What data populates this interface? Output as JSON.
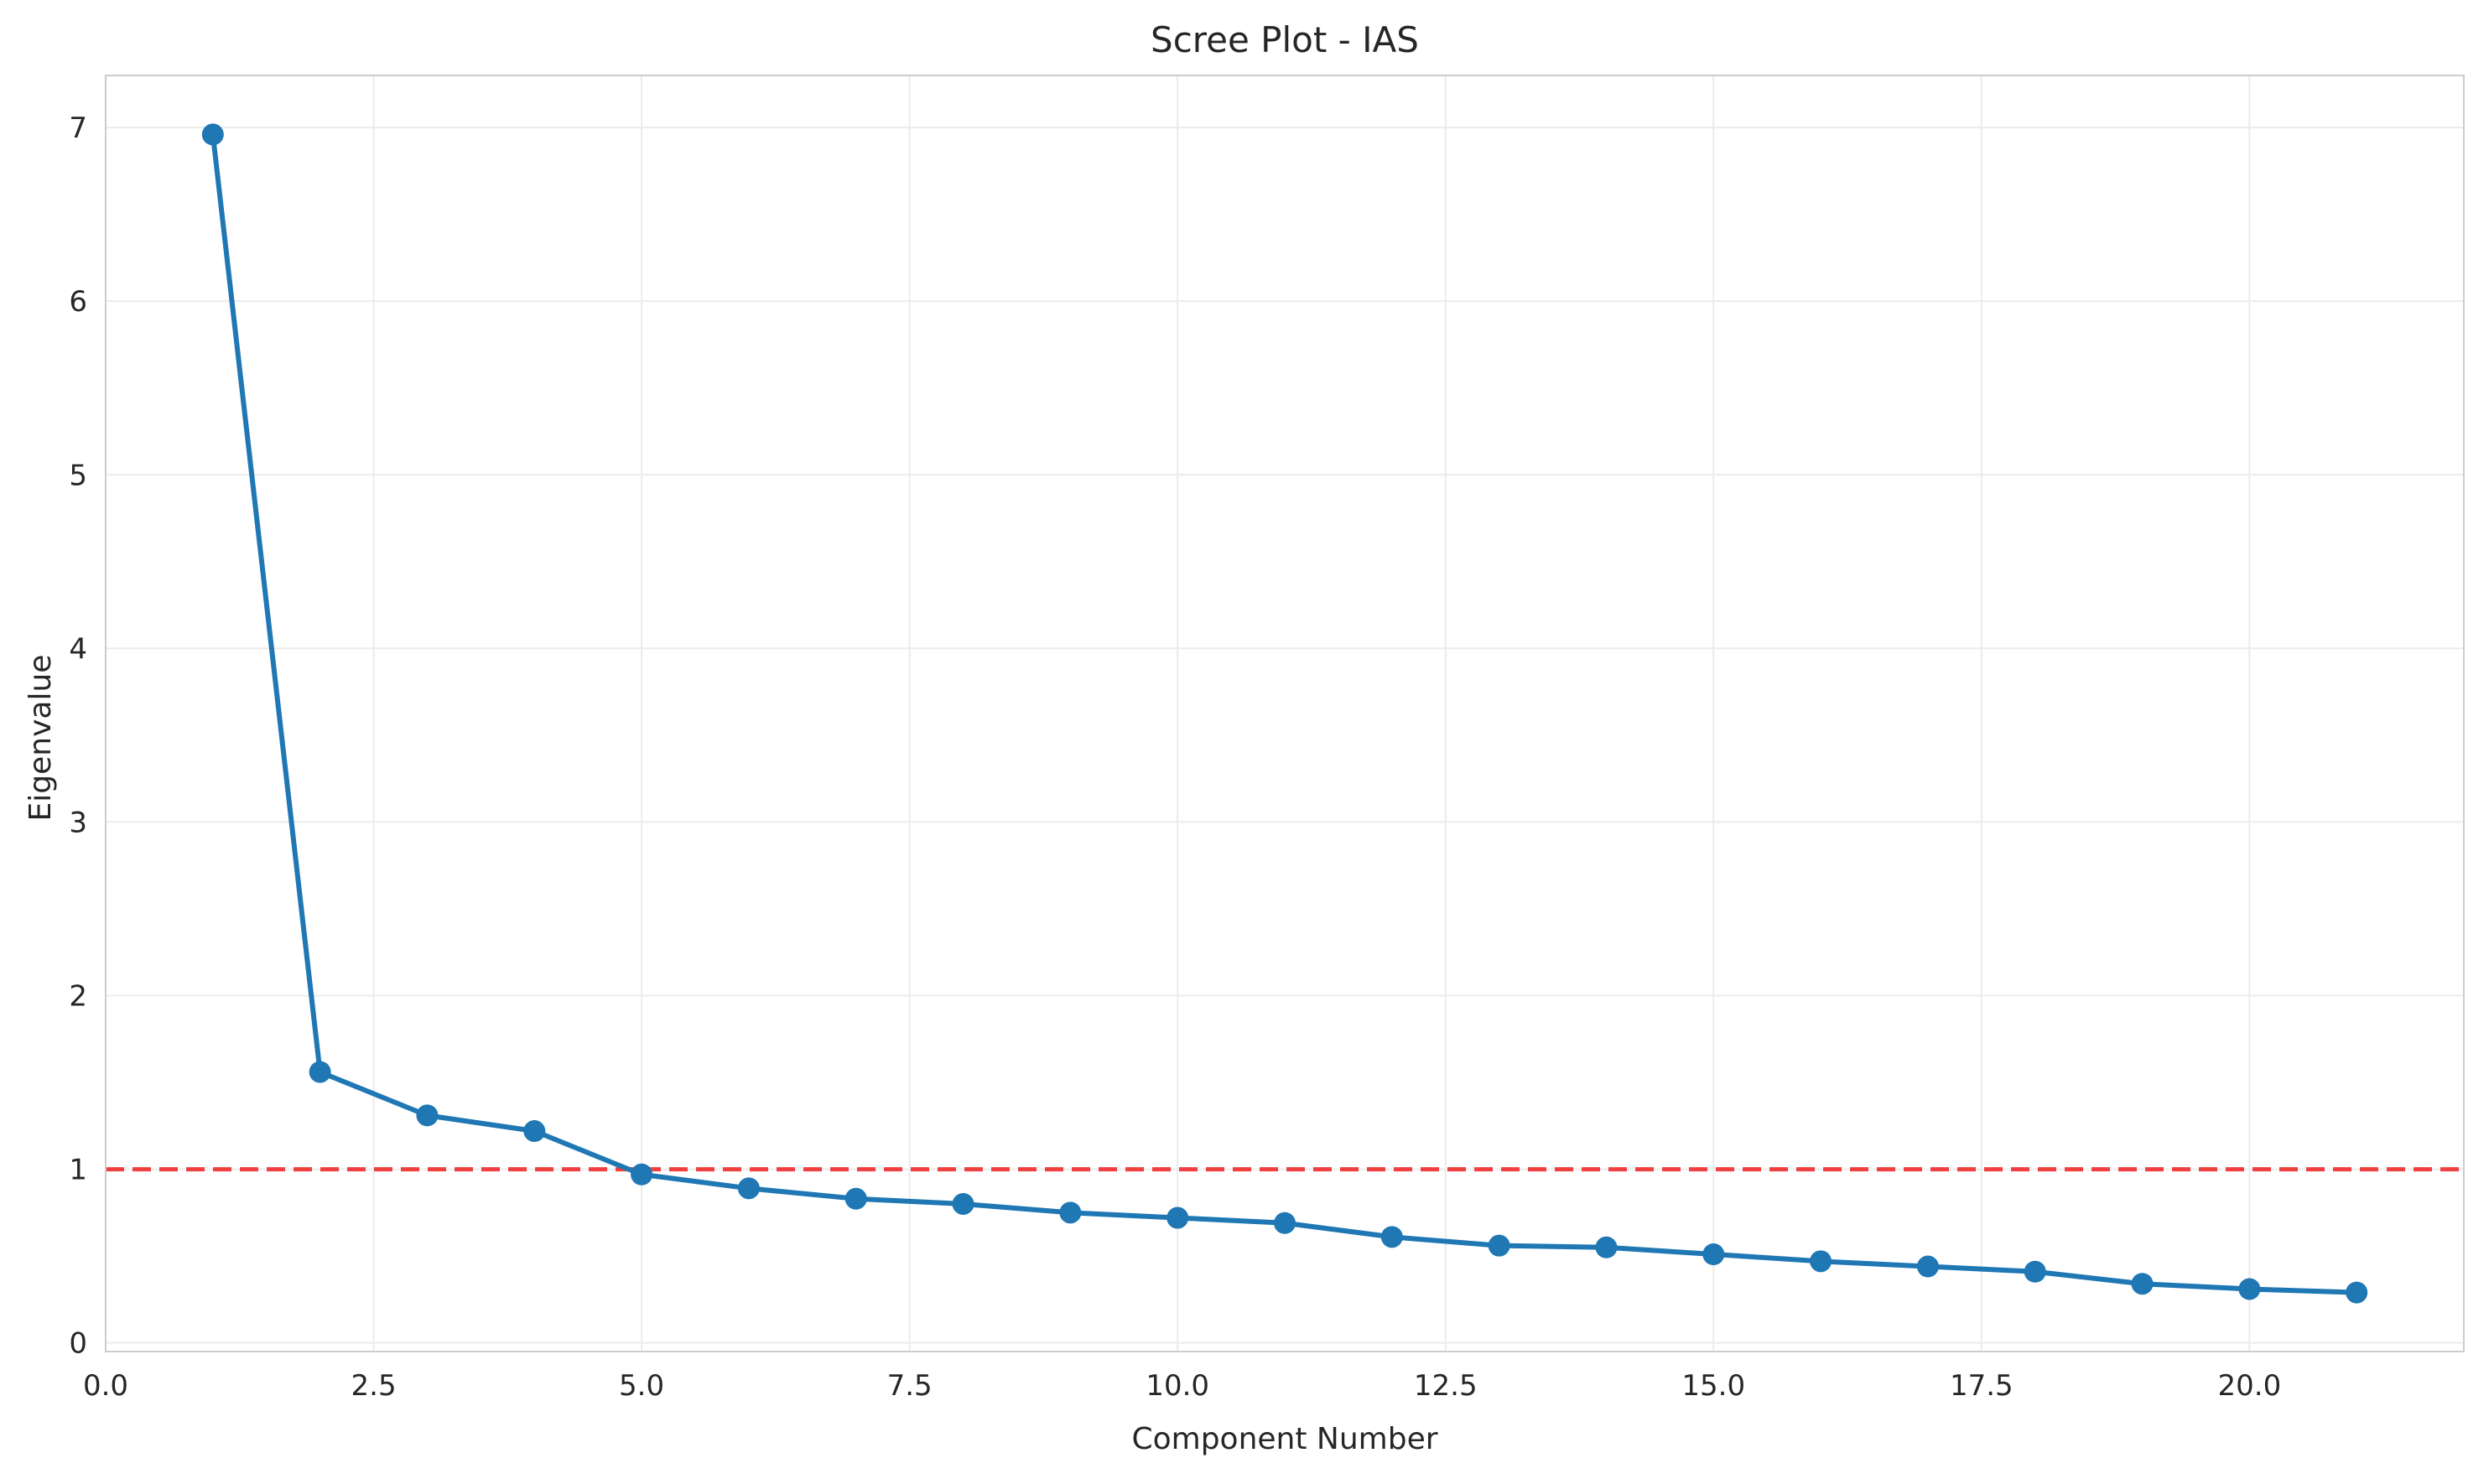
{
  "chart_data": {
    "type": "line",
    "title": "Scree Plot - IAS",
    "xlabel": "Component Number",
    "ylabel": "Eigenvalue",
    "xlim": [
      0,
      22
    ],
    "ylim": [
      -0.05,
      7.3
    ],
    "grid": true,
    "x_ticks": [
      0,
      2.5,
      5,
      7.5,
      10,
      12.5,
      15,
      17.5,
      20
    ],
    "x_tick_labels": [
      "0.0",
      "2.5",
      "5.0",
      "7.5",
      "10.0",
      "12.5",
      "15.0",
      "17.5",
      "20.0"
    ],
    "y_ticks": [
      0,
      1,
      2,
      3,
      4,
      5,
      6,
      7
    ],
    "y_tick_labels": [
      "0",
      "1",
      "2",
      "3",
      "4",
      "5",
      "6",
      "7"
    ],
    "series": [
      {
        "x": [
          1,
          2,
          3,
          4,
          5,
          6,
          7,
          8,
          9,
          10,
          11,
          12,
          13,
          14,
          15,
          16,
          17,
          18,
          19,
          20,
          21
        ],
        "values": [
          6.96,
          1.56,
          1.31,
          1.22,
          0.97,
          0.89,
          0.83,
          0.8,
          0.75,
          0.72,
          0.69,
          0.61,
          0.56,
          0.55,
          0.51,
          0.47,
          0.44,
          0.41,
          0.34,
          0.31,
          0.29
        ],
        "color": "#1f77b4",
        "marker": "circle"
      }
    ],
    "reference_line": {
      "y": 1,
      "style": "dashed",
      "color": "#f04040"
    }
  }
}
